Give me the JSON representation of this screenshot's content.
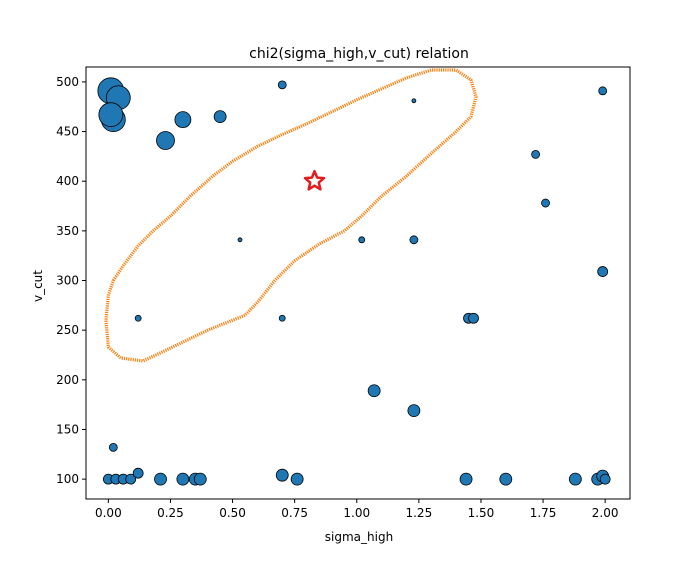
{
  "chart_data": {
    "type": "scatter",
    "title": "chi2(sigma_high,v_cut) relation",
    "xlabel": "sigma_high",
    "ylabel": "v_cut",
    "xlim": [
      -0.09,
      2.1
    ],
    "ylim": [
      80,
      515
    ],
    "xticks": [
      "0.00",
      "0.25",
      "0.50",
      "0.75",
      "1.00",
      "1.25",
      "1.50",
      "1.75",
      "2.00"
    ],
    "yticks": [
      "100",
      "150",
      "200",
      "250",
      "300",
      "350",
      "400",
      "450",
      "500"
    ],
    "grid": false,
    "series": [
      {
        "kind": "points",
        "color": "#1f77b4",
        "edge": "#000000",
        "points": [
          {
            "x": 0.01,
            "y": 491,
            "r": 13
          },
          {
            "x": 0.04,
            "y": 484,
            "r": 12
          },
          {
            "x": 0.02,
            "y": 462,
            "r": 12
          },
          {
            "x": 0.01,
            "y": 467,
            "r": 12
          },
          {
            "x": 0.23,
            "y": 441,
            "r": 9
          },
          {
            "x": 0.3,
            "y": 462,
            "r": 8
          },
          {
            "x": 0.45,
            "y": 465,
            "r": 6
          },
          {
            "x": 0.7,
            "y": 497,
            "r": 4
          },
          {
            "x": 1.23,
            "y": 481,
            "r": 2
          },
          {
            "x": 1.99,
            "y": 491,
            "r": 4
          },
          {
            "x": 1.72,
            "y": 427,
            "r": 4
          },
          {
            "x": 1.76,
            "y": 378,
            "r": 4
          },
          {
            "x": 1.99,
            "y": 309,
            "r": 5
          },
          {
            "x": 0.53,
            "y": 341,
            "r": 2
          },
          {
            "x": 1.02,
            "y": 341,
            "r": 3
          },
          {
            "x": 1.23,
            "y": 341,
            "r": 4
          },
          {
            "x": 0.12,
            "y": 262,
            "r": 3
          },
          {
            "x": 0.7,
            "y": 262,
            "r": 3
          },
          {
            "x": 1.45,
            "y": 262,
            "r": 5
          },
          {
            "x": 1.47,
            "y": 262,
            "r": 5
          },
          {
            "x": 1.07,
            "y": 189,
            "r": 6
          },
          {
            "x": 1.23,
            "y": 169,
            "r": 6
          },
          {
            "x": 0.02,
            "y": 132,
            "r": 4
          },
          {
            "x": 0.0,
            "y": 100,
            "r": 5
          },
          {
            "x": 0.03,
            "y": 100,
            "r": 5
          },
          {
            "x": 0.06,
            "y": 100,
            "r": 5
          },
          {
            "x": 0.09,
            "y": 100,
            "r": 5
          },
          {
            "x": 0.12,
            "y": 106,
            "r": 5
          },
          {
            "x": 0.21,
            "y": 100,
            "r": 6
          },
          {
            "x": 0.3,
            "y": 100,
            "r": 6
          },
          {
            "x": 0.35,
            "y": 100,
            "r": 6
          },
          {
            "x": 0.37,
            "y": 100,
            "r": 6
          },
          {
            "x": 0.7,
            "y": 104,
            "r": 6
          },
          {
            "x": 0.76,
            "y": 100,
            "r": 6
          },
          {
            "x": 1.44,
            "y": 100,
            "r": 6
          },
          {
            "x": 1.6,
            "y": 100,
            "r": 6
          },
          {
            "x": 1.88,
            "y": 100,
            "r": 6
          },
          {
            "x": 1.97,
            "y": 100,
            "r": 6
          },
          {
            "x": 1.99,
            "y": 103,
            "r": 6
          },
          {
            "x": 2.0,
            "y": 100,
            "r": 5
          }
        ]
      },
      {
        "kind": "contour",
        "color": "#ff7f0e",
        "points": [
          [
            0.02,
            300
          ],
          [
            0.06,
            315
          ],
          [
            0.12,
            335
          ],
          [
            0.18,
            350
          ],
          [
            0.25,
            365
          ],
          [
            0.33,
            385
          ],
          [
            0.42,
            405
          ],
          [
            0.5,
            420
          ],
          [
            0.6,
            435
          ],
          [
            0.7,
            447
          ],
          [
            0.8,
            458
          ],
          [
            0.9,
            470
          ],
          [
            1.0,
            482
          ],
          [
            1.1,
            493
          ],
          [
            1.2,
            504
          ],
          [
            1.3,
            512
          ],
          [
            1.4,
            512
          ],
          [
            1.46,
            502
          ],
          [
            1.48,
            485
          ],
          [
            1.46,
            465
          ],
          [
            1.4,
            450
          ],
          [
            1.3,
            428
          ],
          [
            1.2,
            405
          ],
          [
            1.1,
            385
          ],
          [
            1.02,
            365
          ],
          [
            0.95,
            350
          ],
          [
            0.85,
            337
          ],
          [
            0.75,
            320
          ],
          [
            0.67,
            300
          ],
          [
            0.6,
            278
          ],
          [
            0.55,
            265
          ],
          [
            0.48,
            258
          ],
          [
            0.4,
            250
          ],
          [
            0.3,
            238
          ],
          [
            0.2,
            226
          ],
          [
            0.14,
            219
          ],
          [
            0.05,
            222
          ],
          [
            0.0,
            233
          ],
          [
            -0.01,
            260
          ],
          [
            0.0,
            285
          ],
          [
            0.02,
            300
          ]
        ]
      },
      {
        "kind": "best-fit-marker",
        "color": "#e41a1c",
        "points": [
          {
            "x": 0.83,
            "y": 400
          }
        ]
      }
    ]
  }
}
